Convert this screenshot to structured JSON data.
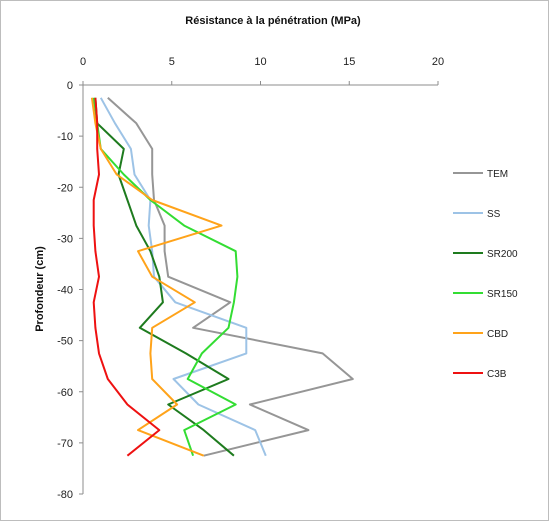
{
  "chart_data": {
    "type": "line",
    "title": "Résistance à la pénétration (MPa)",
    "ylabel": "Profondeur (cm)",
    "xlabel": "",
    "xlim": [
      0,
      20
    ],
    "ylim": [
      -80,
      0
    ],
    "x_ticks": [
      "0",
      "5",
      "10",
      "15",
      "20"
    ],
    "y_ticks": [
      "0",
      "-10",
      "-20",
      "-30",
      "-40",
      "-50",
      "-60",
      "-70",
      "-80"
    ],
    "x_axis_position": "top",
    "grid": false,
    "legend_position": "right",
    "series": [
      {
        "name": "TEM",
        "color": "#969696",
        "points": [
          [
            1.4,
            -2.5
          ],
          [
            3.0,
            -7.5
          ],
          [
            3.9,
            -12.5
          ],
          [
            3.9,
            -17.5
          ],
          [
            4.0,
            -22.5
          ],
          [
            4.6,
            -27.5
          ],
          [
            4.6,
            -32.5
          ],
          [
            4.8,
            -37.5
          ],
          [
            8.3,
            -42.5
          ],
          [
            6.2,
            -47.5
          ],
          [
            13.5,
            -52.5
          ],
          [
            15.2,
            -57.5
          ],
          [
            9.4,
            -62.5
          ],
          [
            12.7,
            -67.5
          ],
          [
            6.8,
            -72.5
          ]
        ]
      },
      {
        "name": "SS",
        "color": "#9dc3e6",
        "points": [
          [
            1.0,
            -2.5
          ],
          [
            1.8,
            -7.5
          ],
          [
            2.7,
            -12.5
          ],
          [
            2.9,
            -17.5
          ],
          [
            3.8,
            -22.5
          ],
          [
            3.7,
            -27.5
          ],
          [
            3.9,
            -32.5
          ],
          [
            4.0,
            -37.5
          ],
          [
            5.2,
            -42.5
          ],
          [
            9.2,
            -47.5
          ],
          [
            9.2,
            -52.5
          ],
          [
            5.1,
            -57.5
          ],
          [
            6.5,
            -62.5
          ],
          [
            9.7,
            -67.5
          ],
          [
            10.3,
            -72.5
          ]
        ]
      },
      {
        "name": "SR200",
        "color": "#1e7b1e",
        "points": [
          [
            0.7,
            -2.5
          ],
          [
            0.8,
            -7.5
          ],
          [
            2.3,
            -12.5
          ],
          [
            2.0,
            -17.5
          ],
          [
            2.5,
            -22.5
          ],
          [
            3.0,
            -27.5
          ],
          [
            3.8,
            -32.5
          ],
          [
            4.3,
            -37.5
          ],
          [
            4.5,
            -42.5
          ],
          [
            3.2,
            -47.5
          ],
          [
            5.8,
            -52.5
          ],
          [
            8.2,
            -57.5
          ],
          [
            4.8,
            -62.5
          ],
          [
            6.8,
            -67.5
          ],
          [
            8.5,
            -72.5
          ]
        ]
      },
      {
        "name": "SR150",
        "color": "#33dd33",
        "points": [
          [
            0.6,
            -2.5
          ],
          [
            0.8,
            -7.5
          ],
          [
            1.0,
            -12.5
          ],
          [
            2.3,
            -17.5
          ],
          [
            3.8,
            -22.5
          ],
          [
            5.7,
            -27.5
          ],
          [
            8.6,
            -32.5
          ],
          [
            8.7,
            -37.5
          ],
          [
            8.5,
            -42.5
          ],
          [
            8.2,
            -47.5
          ],
          [
            6.7,
            -52.5
          ],
          [
            5.9,
            -57.5
          ],
          [
            8.6,
            -62.5
          ],
          [
            5.7,
            -67.5
          ],
          [
            6.2,
            -72.5
          ]
        ]
      },
      {
        "name": "CBD",
        "color": "#ffa31a",
        "points": [
          [
            0.5,
            -2.5
          ],
          [
            0.7,
            -7.5
          ],
          [
            1.0,
            -12.5
          ],
          [
            1.9,
            -17.5
          ],
          [
            3.9,
            -22.5
          ],
          [
            7.8,
            -27.5
          ],
          [
            3.1,
            -32.5
          ],
          [
            3.9,
            -37.5
          ],
          [
            6.3,
            -42.5
          ],
          [
            3.9,
            -47.5
          ],
          [
            3.8,
            -52.5
          ],
          [
            3.9,
            -57.5
          ],
          [
            5.3,
            -62.5
          ],
          [
            3.1,
            -67.5
          ],
          [
            6.8,
            -72.5
          ]
        ]
      },
      {
        "name": "C3B",
        "color": "#ee1111",
        "points": [
          [
            0.7,
            -2.5
          ],
          [
            0.8,
            -7.5
          ],
          [
            0.8,
            -12.5
          ],
          [
            0.9,
            -17.5
          ],
          [
            0.6,
            -22.5
          ],
          [
            0.6,
            -27.5
          ],
          [
            0.7,
            -32.5
          ],
          [
            0.9,
            -37.5
          ],
          [
            0.6,
            -42.5
          ],
          [
            0.7,
            -47.5
          ],
          [
            0.9,
            -52.5
          ],
          [
            1.4,
            -57.5
          ],
          [
            2.5,
            -62.5
          ],
          [
            4.3,
            -67.5
          ],
          [
            2.5,
            -72.5
          ]
        ]
      }
    ]
  }
}
